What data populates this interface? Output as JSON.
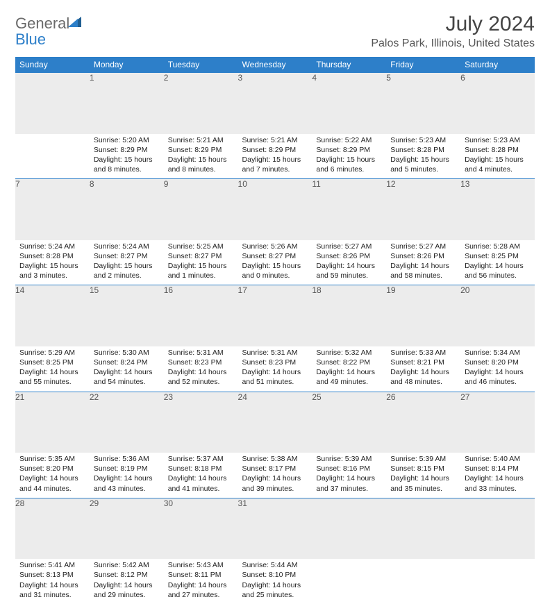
{
  "brand": {
    "word1": "General",
    "word2": "Blue"
  },
  "title": "July 2024",
  "location": "Palos Park, Illinois, United States",
  "colors": {
    "accent": "#2d7fc9",
    "header_text": "#ffffff",
    "daynum_bg": "#ececec",
    "rule": "#2d7fc9"
  },
  "days_of_week": [
    "Sunday",
    "Monday",
    "Tuesday",
    "Wednesday",
    "Thursday",
    "Friday",
    "Saturday"
  ],
  "calendar": {
    "first_weekday_index": 1,
    "num_days": 31,
    "cells": [
      {
        "day": 1,
        "sunrise": "5:20 AM",
        "sunset": "8:29 PM",
        "daylight_h": 15,
        "daylight_m": 8
      },
      {
        "day": 2,
        "sunrise": "5:21 AM",
        "sunset": "8:29 PM",
        "daylight_h": 15,
        "daylight_m": 8
      },
      {
        "day": 3,
        "sunrise": "5:21 AM",
        "sunset": "8:29 PM",
        "daylight_h": 15,
        "daylight_m": 7
      },
      {
        "day": 4,
        "sunrise": "5:22 AM",
        "sunset": "8:29 PM",
        "daylight_h": 15,
        "daylight_m": 6
      },
      {
        "day": 5,
        "sunrise": "5:23 AM",
        "sunset": "8:28 PM",
        "daylight_h": 15,
        "daylight_m": 5
      },
      {
        "day": 6,
        "sunrise": "5:23 AM",
        "sunset": "8:28 PM",
        "daylight_h": 15,
        "daylight_m": 4
      },
      {
        "day": 7,
        "sunrise": "5:24 AM",
        "sunset": "8:28 PM",
        "daylight_h": 15,
        "daylight_m": 3
      },
      {
        "day": 8,
        "sunrise": "5:24 AM",
        "sunset": "8:27 PM",
        "daylight_h": 15,
        "daylight_m": 2
      },
      {
        "day": 9,
        "sunrise": "5:25 AM",
        "sunset": "8:27 PM",
        "daylight_h": 15,
        "daylight_m": 1
      },
      {
        "day": 10,
        "sunrise": "5:26 AM",
        "sunset": "8:27 PM",
        "daylight_h": 15,
        "daylight_m": 0
      },
      {
        "day": 11,
        "sunrise": "5:27 AM",
        "sunset": "8:26 PM",
        "daylight_h": 14,
        "daylight_m": 59
      },
      {
        "day": 12,
        "sunrise": "5:27 AM",
        "sunset": "8:26 PM",
        "daylight_h": 14,
        "daylight_m": 58
      },
      {
        "day": 13,
        "sunrise": "5:28 AM",
        "sunset": "8:25 PM",
        "daylight_h": 14,
        "daylight_m": 56
      },
      {
        "day": 14,
        "sunrise": "5:29 AM",
        "sunset": "8:25 PM",
        "daylight_h": 14,
        "daylight_m": 55
      },
      {
        "day": 15,
        "sunrise": "5:30 AM",
        "sunset": "8:24 PM",
        "daylight_h": 14,
        "daylight_m": 54
      },
      {
        "day": 16,
        "sunrise": "5:31 AM",
        "sunset": "8:23 PM",
        "daylight_h": 14,
        "daylight_m": 52
      },
      {
        "day": 17,
        "sunrise": "5:31 AM",
        "sunset": "8:23 PM",
        "daylight_h": 14,
        "daylight_m": 51
      },
      {
        "day": 18,
        "sunrise": "5:32 AM",
        "sunset": "8:22 PM",
        "daylight_h": 14,
        "daylight_m": 49
      },
      {
        "day": 19,
        "sunrise": "5:33 AM",
        "sunset": "8:21 PM",
        "daylight_h": 14,
        "daylight_m": 48
      },
      {
        "day": 20,
        "sunrise": "5:34 AM",
        "sunset": "8:20 PM",
        "daylight_h": 14,
        "daylight_m": 46
      },
      {
        "day": 21,
        "sunrise": "5:35 AM",
        "sunset": "8:20 PM",
        "daylight_h": 14,
        "daylight_m": 44
      },
      {
        "day": 22,
        "sunrise": "5:36 AM",
        "sunset": "8:19 PM",
        "daylight_h": 14,
        "daylight_m": 43
      },
      {
        "day": 23,
        "sunrise": "5:37 AM",
        "sunset": "8:18 PM",
        "daylight_h": 14,
        "daylight_m": 41
      },
      {
        "day": 24,
        "sunrise": "5:38 AM",
        "sunset": "8:17 PM",
        "daylight_h": 14,
        "daylight_m": 39
      },
      {
        "day": 25,
        "sunrise": "5:39 AM",
        "sunset": "8:16 PM",
        "daylight_h": 14,
        "daylight_m": 37
      },
      {
        "day": 26,
        "sunrise": "5:39 AM",
        "sunset": "8:15 PM",
        "daylight_h": 14,
        "daylight_m": 35
      },
      {
        "day": 27,
        "sunrise": "5:40 AM",
        "sunset": "8:14 PM",
        "daylight_h": 14,
        "daylight_m": 33
      },
      {
        "day": 28,
        "sunrise": "5:41 AM",
        "sunset": "8:13 PM",
        "daylight_h": 14,
        "daylight_m": 31
      },
      {
        "day": 29,
        "sunrise": "5:42 AM",
        "sunset": "8:12 PM",
        "daylight_h": 14,
        "daylight_m": 29
      },
      {
        "day": 30,
        "sunrise": "5:43 AM",
        "sunset": "8:11 PM",
        "daylight_h": 14,
        "daylight_m": 27
      },
      {
        "day": 31,
        "sunrise": "5:44 AM",
        "sunset": "8:10 PM",
        "daylight_h": 14,
        "daylight_m": 25
      }
    ]
  },
  "labels": {
    "sunrise": "Sunrise:",
    "sunset": "Sunset:",
    "daylight_prefix": "Daylight:",
    "hours_word": "hours",
    "and_word": "and",
    "minutes_word": "minutes."
  }
}
